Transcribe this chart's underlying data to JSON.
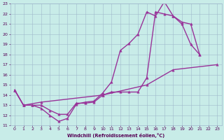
{
  "xlabel": "Windchill (Refroidissement éolien,°C)",
  "xlim": [
    -0.5,
    23.5
  ],
  "ylim": [
    11,
    23
  ],
  "xticks": [
    0,
    1,
    2,
    3,
    4,
    5,
    6,
    7,
    8,
    9,
    10,
    11,
    12,
    13,
    14,
    15,
    16,
    17,
    18,
    19,
    20,
    21,
    22,
    23
  ],
  "yticks": [
    11,
    12,
    13,
    14,
    15,
    16,
    17,
    18,
    19,
    20,
    21,
    22,
    23
  ],
  "bg_color": "#c8ece8",
  "grid_color": "#a0b8cc",
  "line_color": "#993399",
  "line_width": 1.0,
  "marker_size": 2.5,
  "curve1_x": [
    0,
    1,
    2,
    3,
    4,
    5,
    6,
    7,
    8,
    9,
    10,
    11,
    12,
    13,
    14,
    15,
    16,
    17,
    18,
    19,
    20,
    21
  ],
  "curve1_y": [
    14.5,
    13.0,
    13.0,
    12.7,
    12.0,
    11.4,
    11.7,
    13.1,
    13.3,
    13.4,
    14.2,
    15.3,
    18.4,
    19.1,
    20.0,
    22.2,
    21.8,
    23.2,
    21.8,
    21.0,
    19.0,
    18.0
  ],
  "curve2_x": [
    0,
    1,
    2,
    3,
    4,
    5,
    6,
    7,
    8,
    9,
    10,
    11,
    12,
    13,
    14,
    15,
    16,
    17,
    18,
    19,
    20,
    21
  ],
  "curve2_y": [
    14.5,
    13.0,
    13.0,
    13.0,
    12.5,
    12.1,
    12.1,
    13.2,
    13.2,
    13.3,
    14.0,
    14.3,
    14.3,
    14.3,
    14.3,
    15.7,
    22.2,
    22.0,
    21.8,
    21.2,
    21.0,
    18.0
  ],
  "curve3_x": [
    0,
    1,
    3,
    10,
    15,
    18,
    23
  ],
  "curve3_y": [
    14.5,
    13.0,
    13.3,
    14.0,
    15.0,
    16.5,
    17.0
  ]
}
